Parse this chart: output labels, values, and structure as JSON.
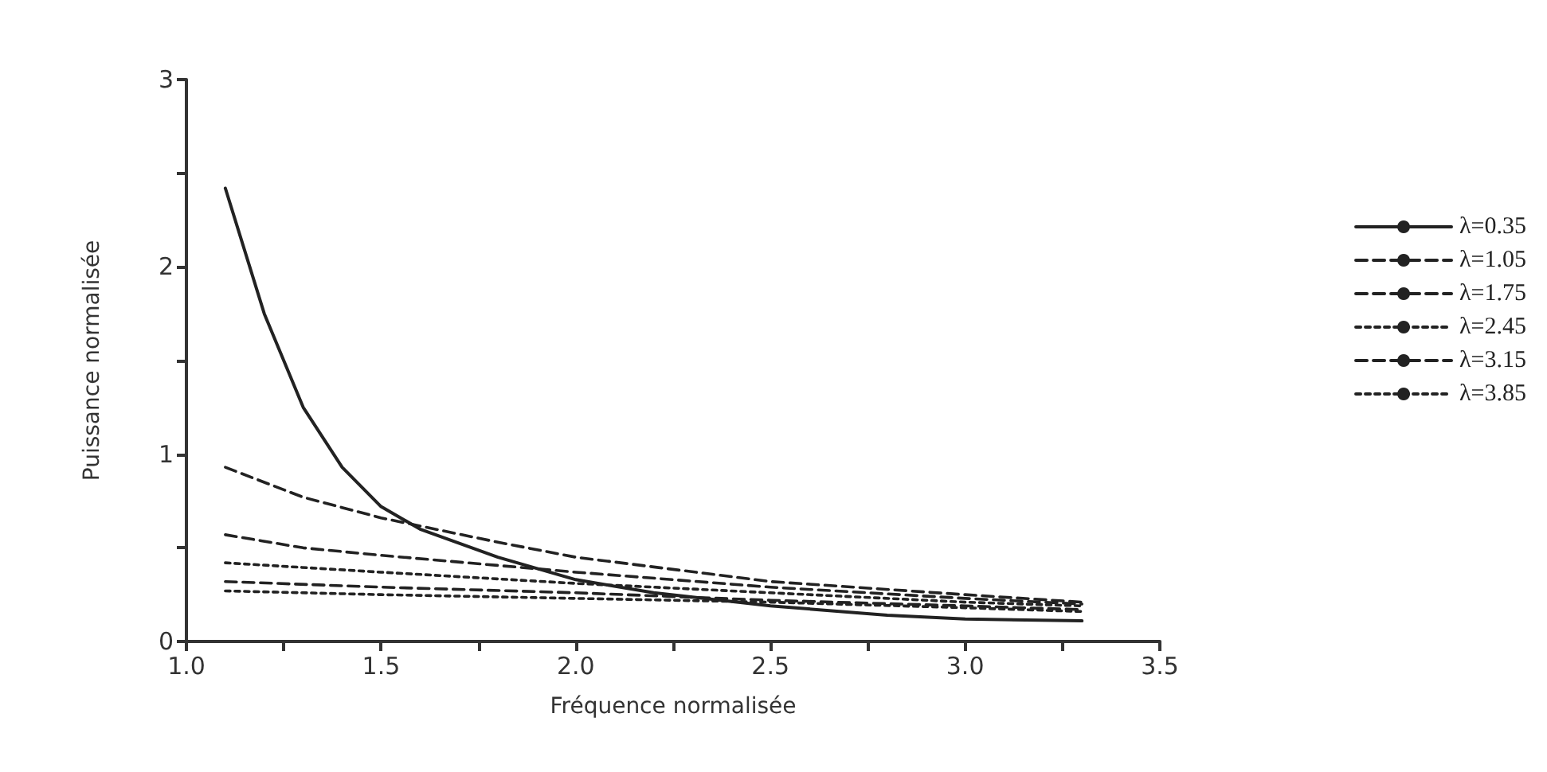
{
  "chart_data": {
    "type": "line",
    "xlabel": "Fréquence normalisée",
    "ylabel": "Puissance normalisée",
    "xlim": [
      1.0,
      3.5
    ],
    "xticks": [
      {
        "value": 1.0,
        "label": "1.0"
      },
      {
        "value": 1.25,
        "label": null
      },
      {
        "value": 1.5,
        "label": "1.5"
      },
      {
        "value": 1.75,
        "label": null
      },
      {
        "value": 2.0,
        "label": "2.0"
      },
      {
        "value": 2.25,
        "label": null
      },
      {
        "value": 2.5,
        "label": "2.5"
      },
      {
        "value": 2.75,
        "label": null
      },
      {
        "value": 3.0,
        "label": "3.0"
      },
      {
        "value": 3.25,
        "label": null
      },
      {
        "value": 3.5,
        "label": "3.5"
      }
    ],
    "ylim": [
      0,
      3
    ],
    "yticks": [
      0,
      {
        "value": 0.5,
        "label": null
      },
      1,
      {
        "value": 1.5,
        "label": null
      },
      2,
      {
        "value": 2.5,
        "label": null
      },
      3
    ],
    "grid": false,
    "legend": "right",
    "marker": "none",
    "series": [
      {
        "name": "λ=0.35",
        "color": "#222222",
        "line_style": "solid",
        "x": [
          1.1,
          1.2,
          1.3,
          1.4,
          1.5,
          1.6,
          1.8,
          2.0,
          2.2,
          2.5,
          2.8,
          3.0,
          3.3
        ],
        "values": [
          2.42,
          1.75,
          1.25,
          0.93,
          0.72,
          0.6,
          0.45,
          0.33,
          0.26,
          0.19,
          0.14,
          0.12,
          0.11
        ]
      },
      {
        "name": "λ=1.05",
        "color": "#222222",
        "line_style": "dashed",
        "x": [
          1.1,
          1.3,
          1.5,
          1.8,
          2.0,
          2.5,
          3.0,
          3.3
        ],
        "values": [
          0.93,
          0.77,
          0.66,
          0.53,
          0.45,
          0.32,
          0.25,
          0.21
        ]
      },
      {
        "name": "λ=1.75",
        "color": "#222222",
        "line_style": "dashed",
        "x": [
          1.1,
          1.3,
          1.5,
          2.0,
          2.5,
          3.0,
          3.3
        ],
        "values": [
          0.57,
          0.5,
          0.46,
          0.37,
          0.29,
          0.23,
          0.2
        ]
      },
      {
        "name": "λ=2.45",
        "color": "#222222",
        "line_style": "dotted",
        "x": [
          1.1,
          1.5,
          2.0,
          2.5,
          3.0,
          3.3
        ],
        "values": [
          0.42,
          0.37,
          0.31,
          0.26,
          0.21,
          0.19
        ]
      },
      {
        "name": "λ=3.15",
        "color": "#222222",
        "line_style": "dashed",
        "x": [
          1.1,
          1.5,
          2.0,
          2.5,
          3.0,
          3.3
        ],
        "values": [
          0.32,
          0.29,
          0.26,
          0.22,
          0.19,
          0.17
        ]
      },
      {
        "name": "λ=3.85",
        "color": "#222222",
        "line_style": "dotted",
        "x": [
          1.1,
          1.5,
          2.0,
          2.5,
          3.0,
          3.3
        ],
        "values": [
          0.27,
          0.25,
          0.23,
          0.21,
          0.18,
          0.16
        ]
      }
    ]
  }
}
